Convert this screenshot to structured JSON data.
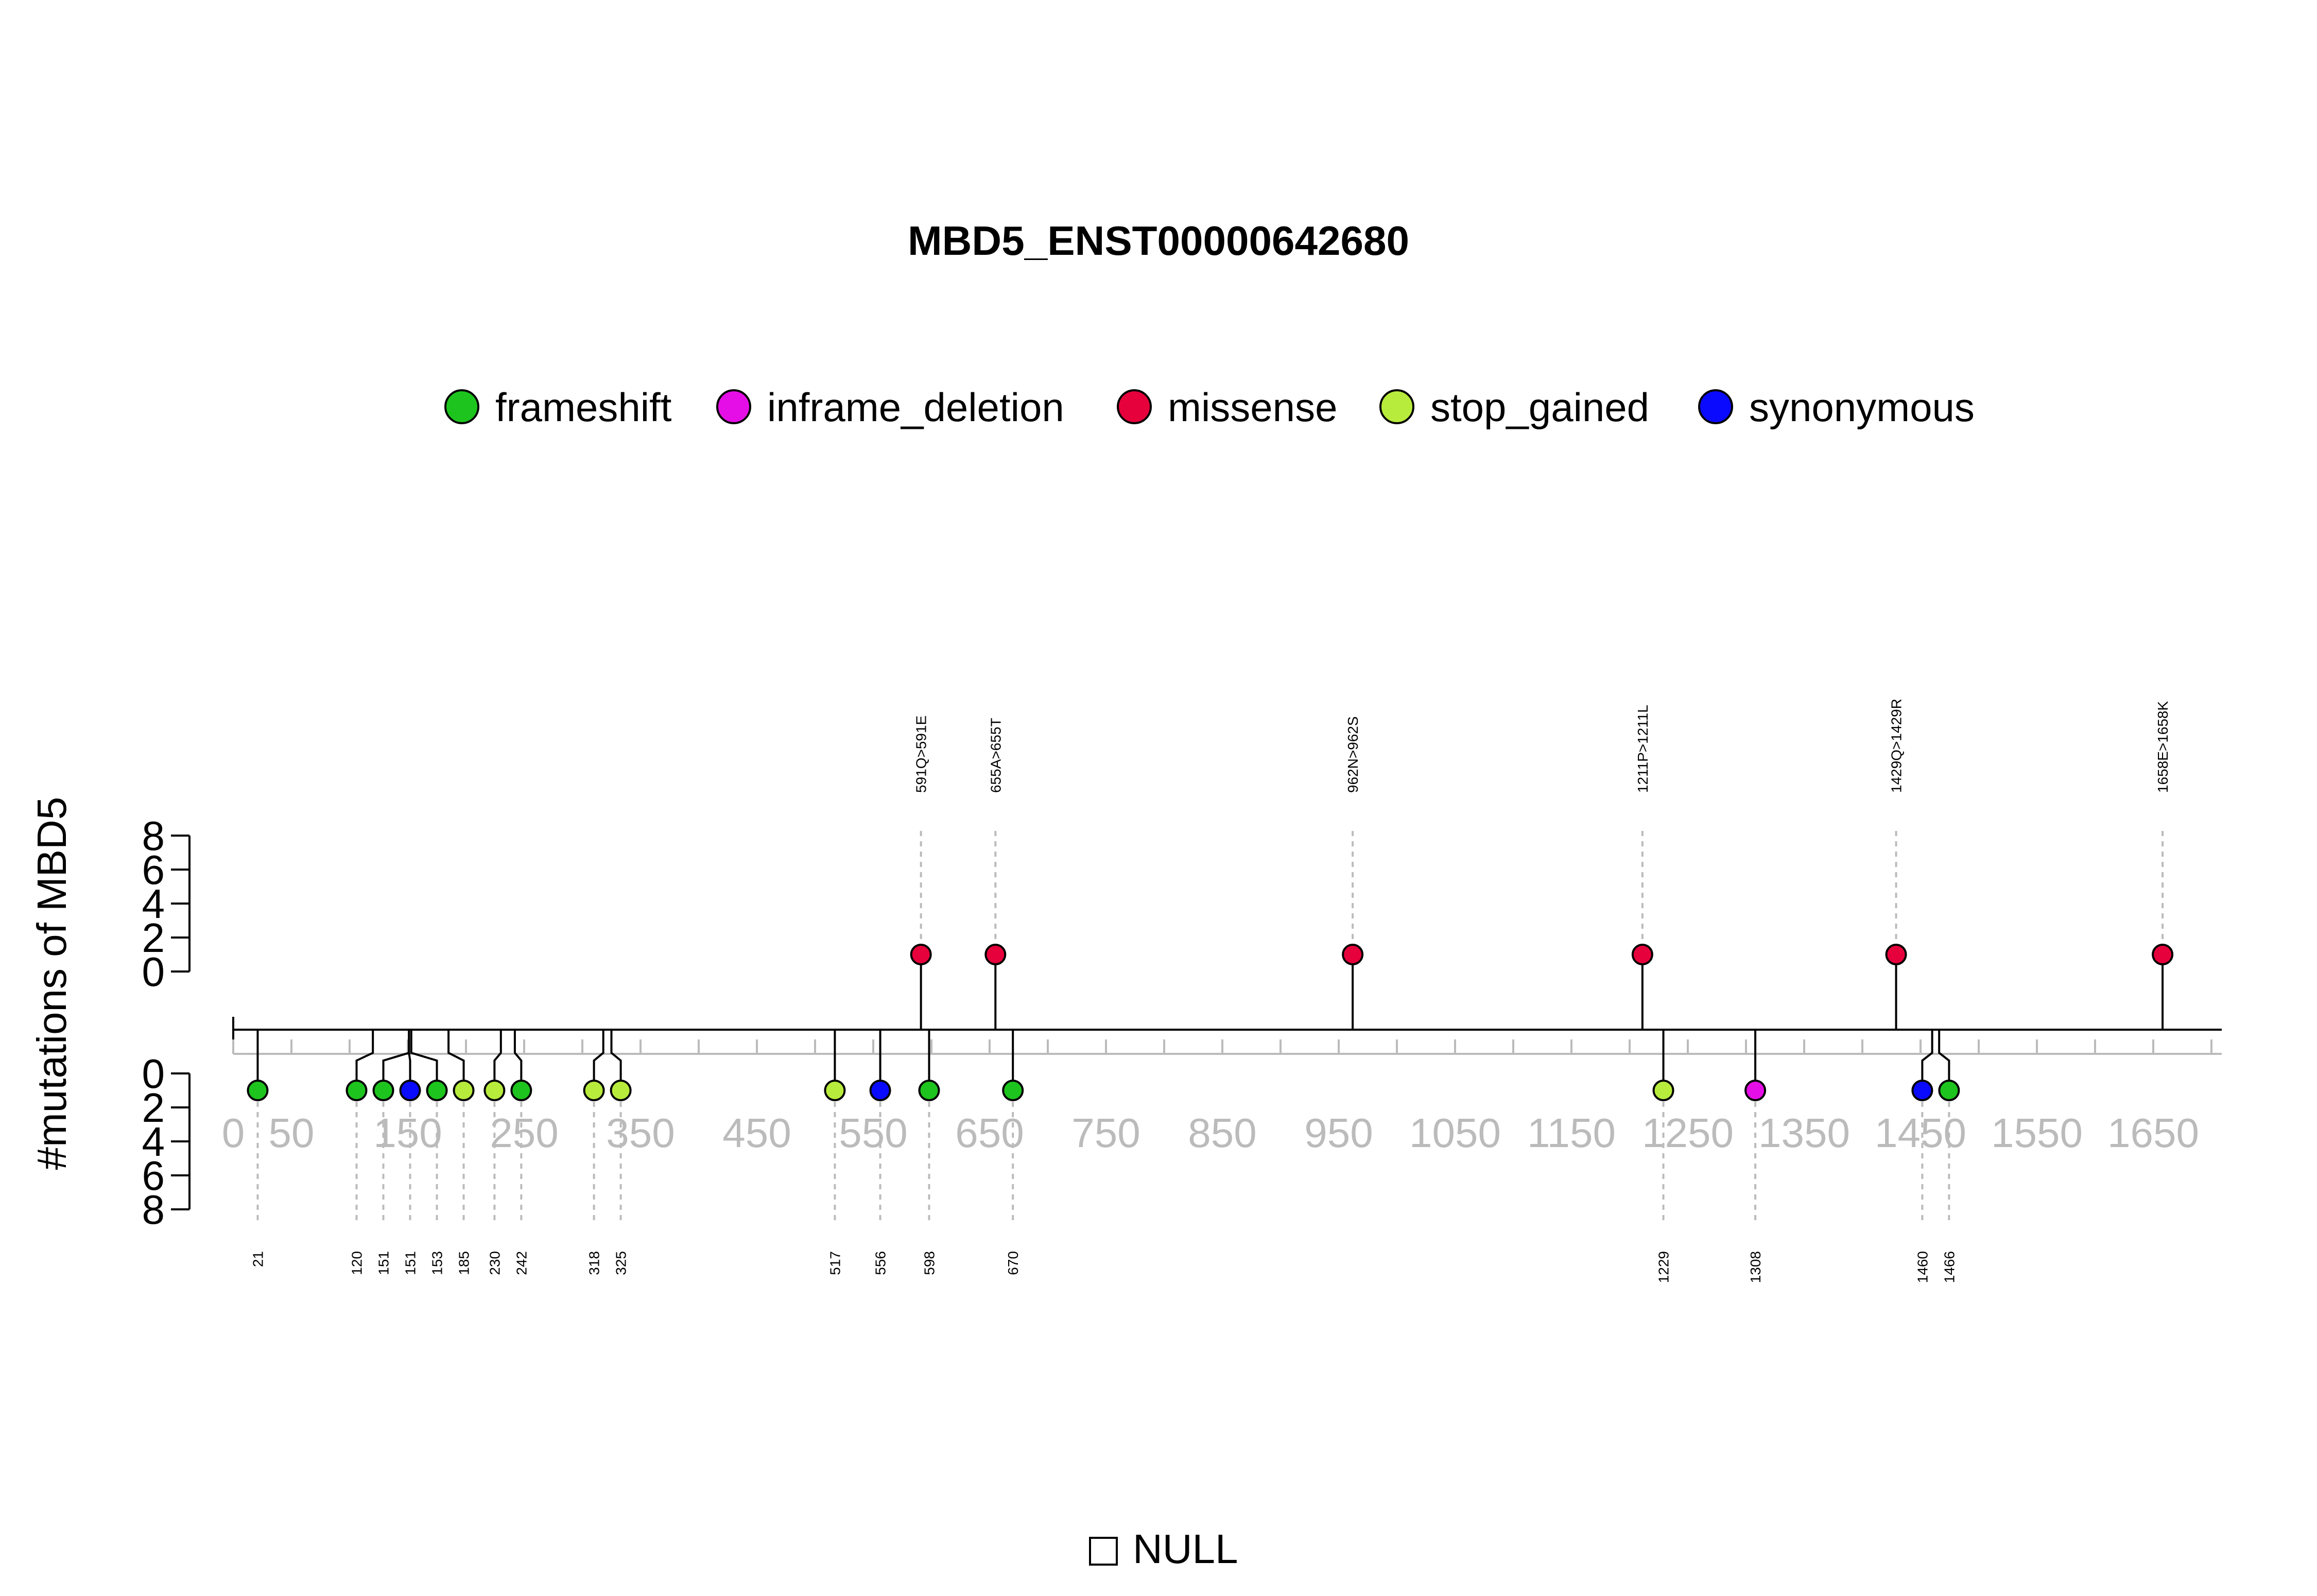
{
  "chart_data": {
    "type": "lollipop",
    "title": "MBD5_ENST00000642680",
    "ylabel": "#mutations of MBD5",
    "xlim": [
      0,
      1700
    ],
    "x_ticks": [
      0,
      50,
      150,
      250,
      350,
      450,
      550,
      650,
      750,
      850,
      950,
      1050,
      1150,
      1250,
      1350,
      1450,
      1550,
      1650
    ],
    "y_ticks_top": [
      0,
      2,
      4,
      6,
      8
    ],
    "y_ticks_bottom": [
      0,
      2,
      4,
      6,
      8
    ],
    "legend": [
      {
        "name": "frameshift",
        "color": "#1ec41e"
      },
      {
        "name": "inframe_deletion",
        "color": "#e60ee6"
      },
      {
        "name": "missense",
        "color": "#e6003c"
      },
      {
        "name": "stop_gained",
        "color": "#b8ec3c"
      },
      {
        "name": "synonymous",
        "color": "#0a0aff"
      }
    ],
    "null_label": "NULL",
    "top_mutations": [
      {
        "pos": 591,
        "count": 1,
        "type": "missense",
        "label": "591Q>591E"
      },
      {
        "pos": 655,
        "count": 1,
        "type": "missense",
        "label": "655A>655T"
      },
      {
        "pos": 962,
        "count": 1,
        "type": "missense",
        "label": "962N>962S"
      },
      {
        "pos": 1211,
        "count": 1,
        "type": "missense",
        "label": "1211P>1211L"
      },
      {
        "pos": 1429,
        "count": 1,
        "type": "missense",
        "label": "1429Q>1429R"
      },
      {
        "pos": 1658,
        "count": 1,
        "type": "missense",
        "label": "1658E>1658K"
      }
    ],
    "bottom_mutations": [
      {
        "pos": 21,
        "count": 1,
        "type": "frameshift",
        "label": "21"
      },
      {
        "pos": 120,
        "count": 1,
        "type": "frameshift",
        "label": "120"
      },
      {
        "pos": 151,
        "count": 1,
        "type": "frameshift",
        "label": "151"
      },
      {
        "pos": 151,
        "count": 1,
        "type": "synonymous",
        "label": "151"
      },
      {
        "pos": 153,
        "count": 1,
        "type": "frameshift",
        "label": "153"
      },
      {
        "pos": 185,
        "count": 1,
        "type": "stop_gained",
        "label": "185"
      },
      {
        "pos": 230,
        "count": 1,
        "type": "stop_gained",
        "label": "230"
      },
      {
        "pos": 242,
        "count": 1,
        "type": "frameshift",
        "label": "242"
      },
      {
        "pos": 318,
        "count": 1,
        "type": "stop_gained",
        "label": "318"
      },
      {
        "pos": 325,
        "count": 1,
        "type": "stop_gained",
        "label": "325"
      },
      {
        "pos": 517,
        "count": 1,
        "type": "stop_gained",
        "label": "517"
      },
      {
        "pos": 556,
        "count": 1,
        "type": "synonymous",
        "label": "556"
      },
      {
        "pos": 598,
        "count": 1,
        "type": "frameshift",
        "label": "598"
      },
      {
        "pos": 670,
        "count": 1,
        "type": "frameshift",
        "label": "670"
      },
      {
        "pos": 1229,
        "count": 1,
        "type": "stop_gained",
        "label": "1229"
      },
      {
        "pos": 1308,
        "count": 1,
        "type": "inframe_deletion",
        "label": "1308"
      },
      {
        "pos": 1460,
        "count": 1,
        "type": "synonymous",
        "label": "1460"
      },
      {
        "pos": 1466,
        "count": 1,
        "type": "frameshift",
        "label": "1466"
      }
    ]
  }
}
